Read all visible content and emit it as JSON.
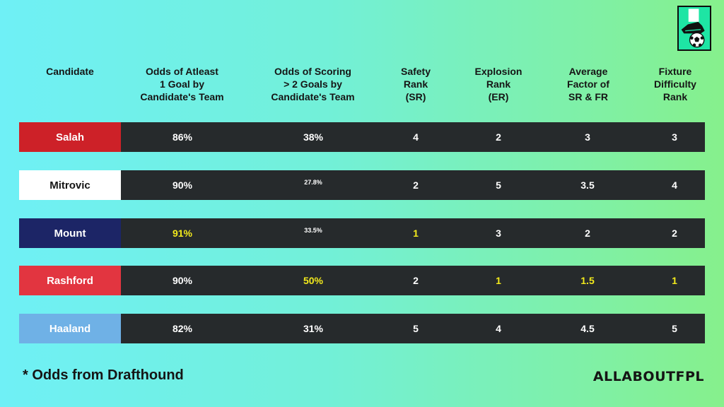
{
  "colors": {
    "row_bg": "#262a2c",
    "highlight": "#f3ea1c",
    "salah": "#cd2128",
    "mitrovic": "#ffffff",
    "mount": "#1c2566",
    "rashford": "#e23540",
    "haaland": "#6fb1e6"
  },
  "logo": {
    "icon": "boot-and-football-icon"
  },
  "headers": [
    "Candidate",
    "Odds of Atleast\n1 Goal by\nCandidate's Team",
    "Odds of Scoring\n> 2 Goals by\nCandidate's Team",
    "Safety\nRank\n(SR)",
    "Explosion\nRank\n(ER)",
    "Average\nFactor of\nSR & FR",
    "Fixture\nDifficulty\nRank"
  ],
  "rows": [
    {
      "name": "Salah",
      "color": "#cd2128",
      "name_color": "#ffffff",
      "cells": [
        {
          "v": "86%"
        },
        {
          "v": "38%"
        },
        {
          "v": "4"
        },
        {
          "v": "2"
        },
        {
          "v": "3"
        },
        {
          "v": "3"
        }
      ]
    },
    {
      "name": "Mitrovic",
      "color": "#ffffff",
      "name_color": "#151515",
      "cells": [
        {
          "v": "90%"
        },
        {
          "v": "27.8%",
          "small": true
        },
        {
          "v": "2"
        },
        {
          "v": "5"
        },
        {
          "v": "3.5"
        },
        {
          "v": "4"
        }
      ]
    },
    {
      "name": "Mount",
      "color": "#1c2566",
      "name_color": "#ffffff",
      "cells": [
        {
          "v": "91%",
          "hl": true
        },
        {
          "v": "33.5%",
          "small": true
        },
        {
          "v": "1",
          "hl": true
        },
        {
          "v": "3"
        },
        {
          "v": "2"
        },
        {
          "v": "2"
        }
      ]
    },
    {
      "name": "Rashford",
      "color": "#e23540",
      "name_color": "#ffffff",
      "cells": [
        {
          "v": "90%"
        },
        {
          "v": "50%",
          "hl": true
        },
        {
          "v": "2"
        },
        {
          "v": "1",
          "hl": true
        },
        {
          "v": "1.5",
          "hl": true
        },
        {
          "v": "1",
          "hl": true
        }
      ]
    },
    {
      "name": "Haaland",
      "color": "#6fb1e6",
      "name_color": "#ffffff",
      "cells": [
        {
          "v": "82%"
        },
        {
          "v": "31%"
        },
        {
          "v": "5"
        },
        {
          "v": "4"
        },
        {
          "v": "4.5"
        },
        {
          "v": "5"
        }
      ]
    }
  ],
  "footnote": "*  Odds from Drafthound",
  "brand": "ALLABOUTFPL"
}
